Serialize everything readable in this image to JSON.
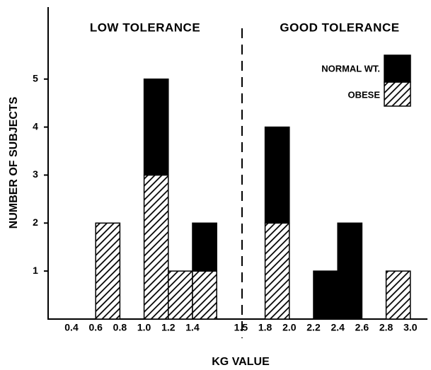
{
  "chart_data": {
    "type": "histogram",
    "xlabel": "KG VALUE",
    "ylabel": "NUMBER OF SUBJECTS",
    "annotations": [
      "LOW TOLERANCE",
      "GOOD TOLERANCE"
    ],
    "bins": [
      "0.4",
      "0.6",
      "0.8",
      "1.0",
      "1.2",
      "1.4",
      null,
      "1.5",
      "1.8",
      "2.0",
      "2.2",
      "2.4",
      "2.6",
      "2.8",
      "3.0"
    ],
    "series": [
      {
        "name": "OBESE",
        "color": "#000000",
        "hatch": true,
        "values": [
          0,
          2,
          0,
          3,
          1,
          1,
          0,
          0,
          2,
          0,
          0,
          0,
          0,
          1
        ]
      },
      {
        "name": "NORMAL WT.",
        "color": "#000000",
        "hatch": false,
        "values": [
          0,
          0,
          0,
          2,
          0,
          1,
          0,
          0,
          2,
          0,
          1,
          2,
          0,
          0
        ]
      }
    ],
    "stacked": true,
    "ylim": [
      0,
      6.5
    ],
    "yticks": [
      1,
      2,
      3,
      4,
      5
    ]
  }
}
